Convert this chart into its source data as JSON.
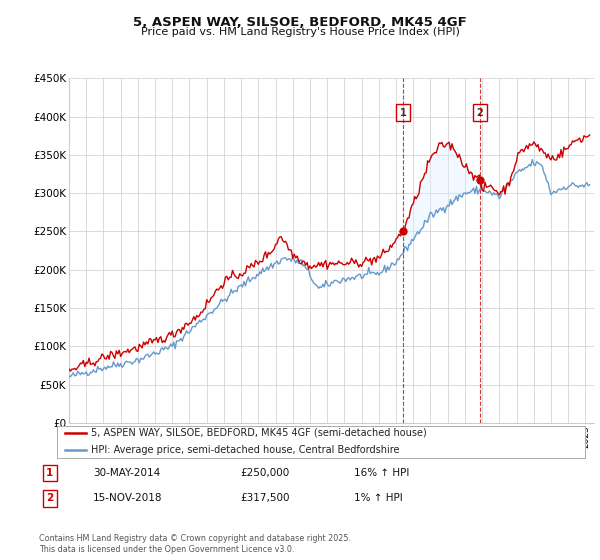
{
  "title_line1": "5, ASPEN WAY, SILSOE, BEDFORD, MK45 4GF",
  "title_line2": "Price paid vs. HM Land Registry's House Price Index (HPI)",
  "ylabel_ticks": [
    "£0",
    "£50K",
    "£100K",
    "£150K",
    "£200K",
    "£250K",
    "£300K",
    "£350K",
    "£400K",
    "£450K"
  ],
  "ylim": [
    0,
    450000
  ],
  "xlim_start": 1995.0,
  "xlim_end": 2025.5,
  "purchase1_year": 2014.41,
  "purchase1_price": 250000,
  "purchase1_label": "1",
  "purchase1_date": "30-MAY-2014",
  "purchase1_pct": "16% ↑ HPI",
  "purchase2_year": 2018.87,
  "purchase2_price": 317500,
  "purchase2_label": "2",
  "purchase2_date": "15-NOV-2018",
  "purchase2_pct": "1% ↑ HPI",
  "legend_line1": "5, ASPEN WAY, SILSOE, BEDFORD, MK45 4GF (semi-detached house)",
  "legend_line2": "HPI: Average price, semi-detached house, Central Bedfordshire",
  "footnote": "Contains HM Land Registry data © Crown copyright and database right 2025.\nThis data is licensed under the Open Government Licence v3.0.",
  "property_color": "#cc0000",
  "hpi_color": "#6699cc",
  "hpi_fill_color": "#ddeeff",
  "grid_color": "#cccccc",
  "background_color": "#ffffff"
}
